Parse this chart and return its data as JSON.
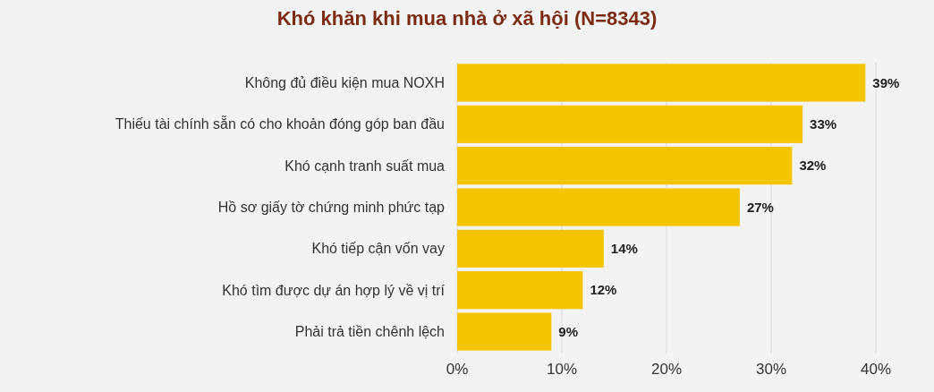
{
  "chart_data": {
    "type": "bar",
    "orientation": "horizontal",
    "title": "Khó khăn khi mua nhà ở xã hội (N=8343)",
    "categories": [
      "Không đủ điều kiện mua NOXH",
      "Thiếu tài chính sẵn có cho khoản đóng góp ban đầu",
      "Khó cạnh tranh suất mua",
      "Hồ sơ giấy tờ chứng minh phức tạp",
      "Khó tiếp cận vốn vay",
      "Khó tìm được dự án hợp lý về vị trí",
      "Phải trả tiền chênh lệch"
    ],
    "values": [
      39,
      33,
      32,
      27,
      14,
      12,
      9
    ],
    "value_labels": [
      "39%",
      "33%",
      "32%",
      "27%",
      "14%",
      "12%",
      "9%"
    ],
    "color": "#f5c400",
    "xlim": [
      0,
      40
    ],
    "xticks": [
      {
        "value": 0,
        "label": "0%"
      },
      {
        "value": 10,
        "label": "10%"
      },
      {
        "value": 20,
        "label": "20%"
      },
      {
        "value": 30,
        "label": "30%"
      },
      {
        "value": 40,
        "label": "40%"
      }
    ],
    "grid": "x"
  }
}
